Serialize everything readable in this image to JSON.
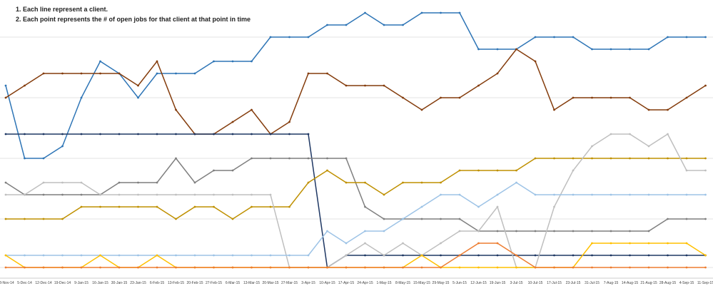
{
  "chart_data": {
    "type": "line",
    "annotations": [
      "1. Each line represent a client.",
      "2. Each point represents the # of open jobs for that client at that point in time"
    ],
    "categories": [
      "28-Nov-14",
      "5-Dec-14",
      "12-Dec-14",
      "19-Dec-14",
      "9-Jan-15",
      "16-Jan-15",
      "30-Jan-15",
      "23-Jan-15",
      "6-Feb-15",
      "13-Feb-15",
      "20-Feb-15",
      "27-Feb-15",
      "6-Mar-15",
      "13-Mar-15",
      "20-Mar-15",
      "27-Mar-15",
      "3-Apr-15",
      "10-Apr-15",
      "17-Apr-15",
      "24-Apr-15",
      "1-May-15",
      "8-May-15",
      "15-May-15",
      "29-May-15",
      "5-Jun-15",
      "12-Jun-15",
      "19-Jun-15",
      "3-Jul-15",
      "10-Jul-15",
      "17-Jul-15",
      "23-Jul-15",
      "31-Jul-15",
      "7-Aug-15",
      "14-Aug-15",
      "21-Aug-15",
      "28-Aug-15",
      "4-Sep-15",
      "11-Sep-15"
    ],
    "ylim": [
      0,
      22
    ],
    "y_gridlines": [
      4,
      9,
      14,
      19
    ],
    "series": [
      {
        "color": "#2e75b6",
        "values": [
          15,
          9,
          9,
          10,
          14,
          17,
          16,
          14,
          16,
          16,
          16,
          17,
          17,
          17,
          19,
          19,
          19,
          20,
          20,
          21,
          20,
          20,
          21,
          21,
          21,
          18,
          18,
          18,
          19,
          19,
          19,
          18,
          18,
          18,
          18,
          19,
          19,
          19
        ]
      },
      {
        "color": "#843c0c",
        "values": [
          14,
          15,
          16,
          16,
          16,
          16,
          16,
          15,
          17,
          13,
          11,
          11,
          12,
          13,
          11,
          12,
          16,
          16,
          15,
          15,
          15,
          14,
          13,
          14,
          14,
          15,
          16,
          18,
          17,
          13,
          14,
          14,
          14,
          14,
          13,
          13,
          14,
          15
        ]
      },
      {
        "color": "#1f3864",
        "values": [
          11,
          11,
          11,
          11,
          11,
          11,
          11,
          11,
          11,
          11,
          11,
          11,
          11,
          11,
          11,
          11,
          11,
          0,
          1,
          1,
          1,
          1,
          1,
          1,
          1,
          1,
          1,
          1,
          1,
          1,
          1,
          1,
          1,
          1,
          1,
          1,
          1,
          1
        ]
      },
      {
        "color": "#7f7f7f",
        "values": [
          7,
          6,
          6,
          6,
          6,
          6,
          7,
          7,
          7,
          9,
          7,
          8,
          8,
          9,
          9,
          9,
          9,
          9,
          9,
          5,
          4,
          4,
          4,
          4,
          4,
          3,
          3,
          3,
          3,
          3,
          3,
          3,
          3,
          3,
          3,
          4,
          4,
          4
        ]
      },
      {
        "color": "#bf9000",
        "values": [
          4,
          4,
          4,
          4,
          5,
          5,
          5,
          5,
          5,
          4,
          5,
          5,
          4,
          5,
          5,
          5,
          7,
          8,
          7,
          7,
          6,
          7,
          7,
          7,
          8,
          8,
          8,
          8,
          9,
          9,
          9,
          9,
          9,
          9,
          9,
          9,
          9,
          9
        ]
      },
      {
        "color": "#bfbfbf",
        "values": [
          6,
          6,
          7,
          7,
          7,
          6,
          6,
          6,
          6,
          6,
          6,
          6,
          6,
          6,
          6,
          0,
          0,
          0,
          1,
          2,
          1,
          2,
          1,
          2,
          3,
          3,
          5,
          0,
          0,
          5,
          8,
          10,
          11,
          11,
          10,
          11,
          8,
          8
        ]
      },
      {
        "color": "#9dc3e6",
        "values": [
          1,
          1,
          1,
          1,
          1,
          1,
          1,
          1,
          1,
          1,
          1,
          1,
          1,
          1,
          1,
          1,
          1,
          3,
          2,
          3,
          3,
          4,
          5,
          6,
          6,
          5,
          6,
          7,
          6,
          6,
          6,
          6,
          6,
          6,
          6,
          6,
          6,
          6
        ]
      },
      {
        "color": "#ffc000",
        "values": [
          1,
          0,
          0,
          0,
          0,
          1,
          0,
          0,
          1,
          0,
          0,
          0,
          0,
          0,
          0,
          0,
          0,
          0,
          0,
          0,
          0,
          0,
          1,
          0,
          0,
          0,
          0,
          0,
          0,
          0,
          0,
          2,
          2,
          2,
          2,
          2,
          2,
          1
        ]
      },
      {
        "color": "#ed7d31",
        "values": [
          0,
          0,
          0,
          0,
          0,
          0,
          0,
          0,
          0,
          0,
          0,
          0,
          0,
          0,
          0,
          0,
          0,
          0,
          0,
          0,
          0,
          0,
          0,
          0,
          1,
          2,
          2,
          1,
          0,
          0,
          0,
          0,
          0,
          0,
          0,
          0,
          0,
          0
        ]
      }
    ]
  }
}
